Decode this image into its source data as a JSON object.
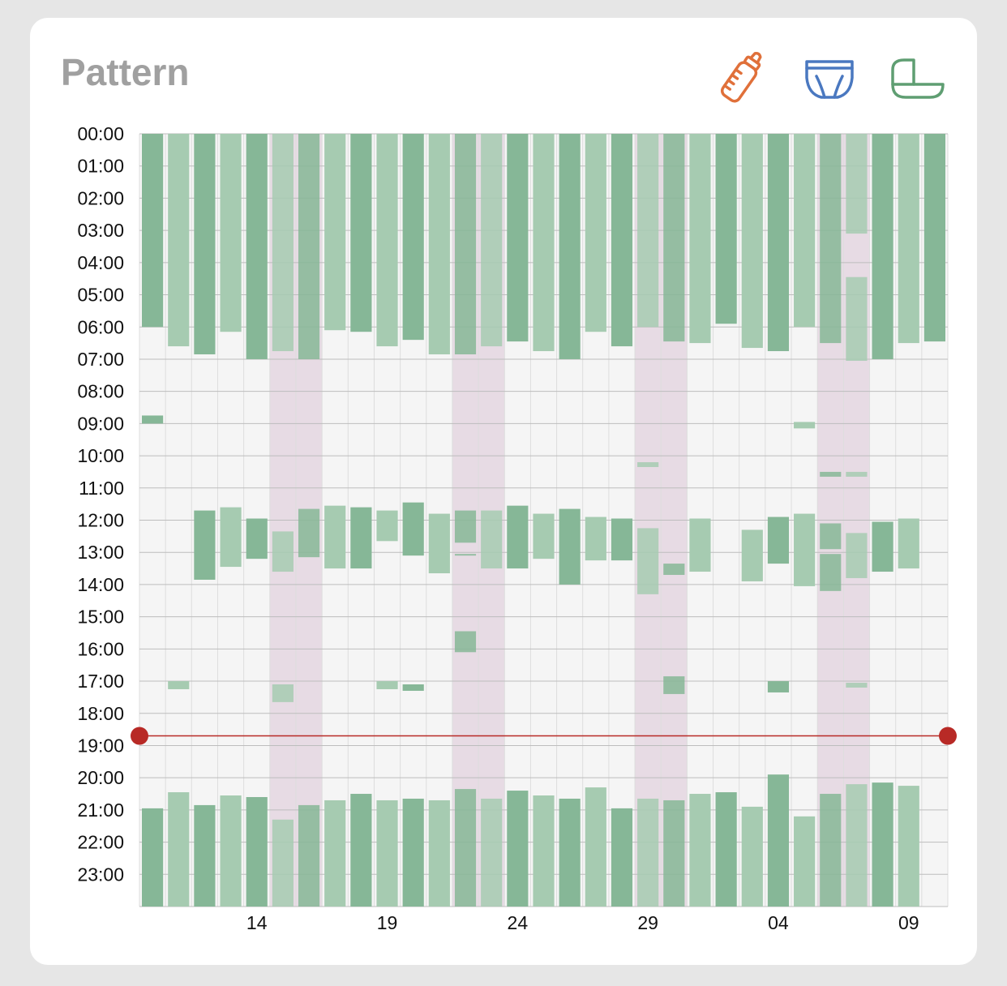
{
  "card": {
    "title": "Pattern",
    "icons": [
      {
        "name": "bottle-icon",
        "color": "#e0703a"
      },
      {
        "name": "diaper-icon",
        "color": "#4a78c0"
      },
      {
        "name": "bassinet-icon",
        "color": "#5f9e72"
      }
    ]
  },
  "chart_data": {
    "type": "bar",
    "title": "Pattern",
    "y_unit": "hour of day",
    "ylim": [
      0,
      24
    ],
    "y_tick_labels": [
      "00:00",
      "01:00",
      "02:00",
      "03:00",
      "04:00",
      "05:00",
      "06:00",
      "07:00",
      "08:00",
      "09:00",
      "10:00",
      "11:00",
      "12:00",
      "13:00",
      "14:00",
      "15:00",
      "16:00",
      "17:00",
      "18:00",
      "19:00",
      "20:00",
      "21:00",
      "22:00",
      "23:00"
    ],
    "x_tick_labels": [
      {
        "day_index": 4.5,
        "label": "14"
      },
      {
        "day_index": 9.5,
        "label": "19"
      },
      {
        "day_index": 14.5,
        "label": "24"
      },
      {
        "day_index": 19.5,
        "label": "29"
      },
      {
        "day_index": 24.5,
        "label": "04"
      },
      {
        "day_index": 29.5,
        "label": "09"
      }
    ],
    "day_count": 31,
    "weekend_day_indices": [
      5,
      6,
      12,
      13,
      19,
      20,
      26,
      27
    ],
    "current_time_hour": 18.7,
    "colors": {
      "sleep_dark": "#86b797",
      "sleep_light": "#a6cbb1",
      "weekend": "#e7dbe4",
      "plot_bg": "#f5f5f5",
      "now_line": "#b82a26"
    },
    "series": [
      {
        "name": "sleep",
        "days": [
          [
            [
              0,
              6.0
            ],
            [
              8.75,
              9.0
            ],
            [
              20.95,
              24
            ]
          ],
          [
            [
              0,
              6.6
            ],
            [
              17.0,
              17.25
            ],
            [
              20.45,
              24
            ]
          ],
          [
            [
              0,
              6.85
            ],
            [
              11.7,
              13.85
            ],
            [
              20.85,
              24
            ]
          ],
          [
            [
              0,
              6.15
            ],
            [
              11.6,
              13.45
            ],
            [
              20.55,
              24
            ]
          ],
          [
            [
              0,
              7.0
            ],
            [
              11.95,
              13.2
            ],
            [
              20.6,
              24
            ]
          ],
          [
            [
              0,
              6.75
            ],
            [
              12.35,
              13.6
            ],
            [
              17.1,
              17.65
            ],
            [
              21.3,
              24
            ]
          ],
          [
            [
              0,
              7.0
            ],
            [
              11.65,
              13.15
            ],
            [
              20.85,
              24
            ]
          ],
          [
            [
              0,
              6.1
            ],
            [
              11.55,
              13.5
            ],
            [
              20.7,
              24
            ]
          ],
          [
            [
              0,
              6.15
            ],
            [
              11.6,
              13.5
            ],
            [
              20.5,
              24
            ]
          ],
          [
            [
              0,
              6.6
            ],
            [
              11.7,
              12.65
            ],
            [
              17.0,
              17.25
            ],
            [
              20.7,
              24
            ]
          ],
          [
            [
              0,
              6.4
            ],
            [
              11.45,
              13.1
            ],
            [
              17.1,
              17.3
            ],
            [
              20.65,
              24
            ]
          ],
          [
            [
              0,
              6.85
            ],
            [
              11.8,
              13.65
            ],
            [
              20.7,
              24
            ]
          ],
          [
            [
              0,
              6.85
            ],
            [
              11.7,
              12.7
            ],
            [
              13.05,
              13.1
            ],
            [
              15.45,
              16.1
            ],
            [
              20.35,
              24
            ]
          ],
          [
            [
              0,
              6.6
            ],
            [
              11.7,
              13.5
            ],
            [
              20.65,
              24
            ]
          ],
          [
            [
              0,
              6.45
            ],
            [
              11.55,
              13.5
            ],
            [
              20.4,
              24
            ]
          ],
          [
            [
              0,
              6.75
            ],
            [
              11.8,
              13.2
            ],
            [
              20.55,
              24
            ]
          ],
          [
            [
              0,
              7.0
            ],
            [
              11.65,
              14.0
            ],
            [
              20.65,
              24
            ]
          ],
          [
            [
              0,
              6.15
            ],
            [
              11.9,
              13.25
            ],
            [
              20.3,
              24
            ]
          ],
          [
            [
              0,
              6.6
            ],
            [
              11.95,
              13.25
            ],
            [
              20.95,
              24
            ]
          ],
          [
            [
              0,
              6.0
            ],
            [
              10.2,
              10.35
            ],
            [
              12.25,
              14.3
            ],
            [
              20.65,
              24
            ]
          ],
          [
            [
              0,
              6.45
            ],
            [
              13.35,
              13.7
            ],
            [
              16.85,
              17.4
            ],
            [
              20.7,
              24
            ]
          ],
          [
            [
              0,
              6.5
            ],
            [
              11.95,
              13.6
            ],
            [
              20.5,
              24
            ]
          ],
          [
            [
              0,
              5.9
            ],
            [
              20.45,
              24
            ]
          ],
          [
            [
              0,
              6.65
            ],
            [
              12.3,
              13.9
            ],
            [
              20.9,
              24
            ]
          ],
          [
            [
              0,
              6.75
            ],
            [
              11.9,
              13.35
            ],
            [
              17.0,
              17.35
            ],
            [
              19.9,
              24
            ]
          ],
          [
            [
              0,
              6.0
            ],
            [
              8.95,
              9.15
            ],
            [
              11.8,
              14.05
            ],
            [
              21.2,
              24
            ]
          ],
          [
            [
              0,
              6.5
            ],
            [
              10.5,
              10.65
            ],
            [
              12.1,
              12.9
            ],
            [
              13.05,
              14.2
            ],
            [
              20.5,
              24
            ]
          ],
          [
            [
              0,
              3.1
            ],
            [
              4.45,
              7.05
            ],
            [
              10.5,
              10.65
            ],
            [
              12.4,
              13.8
            ],
            [
              17.05,
              17.2
            ],
            [
              20.2,
              24
            ]
          ],
          [
            [
              0,
              7.0
            ],
            [
              12.05,
              13.6
            ],
            [
              20.15,
              24
            ]
          ],
          [
            [
              0,
              6.5
            ],
            [
              11.95,
              13.5
            ],
            [
              20.25,
              24
            ]
          ],
          [
            [
              0,
              6.45
            ]
          ]
        ]
      }
    ]
  }
}
